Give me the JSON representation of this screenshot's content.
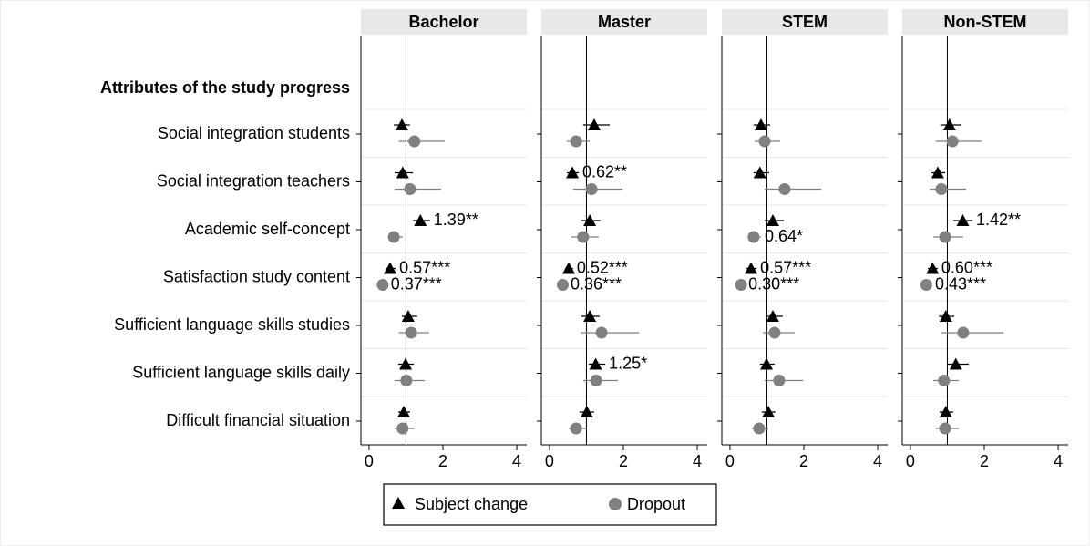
{
  "chart_data": [
    {
      "type": "forest",
      "title": "Bachelor",
      "category_header": "Attributes of the study progress",
      "categories": [
        "Social integration students",
        "Social integration teachers",
        "Academic self-concept",
        "Satisfaction study content",
        "Sufficient language skills studies",
        "Sufficient language skills daily",
        "Difficult financial situation"
      ],
      "reference": 1,
      "xlim": [
        -0.22,
        4.27
      ],
      "xticks": [
        0,
        2,
        4
      ],
      "series": [
        {
          "name": "Subject change",
          "color": "#000000",
          "values": [
            0.89,
            0.91,
            1.39,
            0.57,
            1.06,
            0.99,
            0.94
          ],
          "lower": [
            0.67,
            0.69,
            1.19,
            0.47,
            0.89,
            0.79,
            0.79
          ],
          "upper": [
            1.11,
            1.19,
            1.65,
            0.72,
            1.31,
            1.21,
            1.11
          ],
          "value_labels": [
            null,
            null,
            "1.39**",
            "0.57***",
            null,
            null,
            null
          ]
        },
        {
          "name": "Dropout",
          "color": "#808080",
          "values": [
            1.23,
            1.11,
            0.67,
            0.37,
            1.14,
            1.01,
            0.91
          ],
          "lower": [
            0.81,
            0.69,
            0.57,
            0.32,
            0.81,
            0.69,
            0.69
          ],
          "upper": [
            2.05,
            1.95,
            0.91,
            0.49,
            1.63,
            1.51,
            1.23
          ],
          "value_labels": [
            null,
            null,
            null,
            "0.37***",
            null,
            null,
            null
          ]
        }
      ]
    },
    {
      "type": "forest",
      "title": "Master",
      "reference": 1,
      "xlim": [
        -0.22,
        4.27
      ],
      "xticks": [
        0,
        2,
        4
      ],
      "series": [
        {
          "values": [
            1.21,
            0.62,
            1.09,
            0.52,
            1.09,
            1.25,
            1.01
          ],
          "lower": [
            0.91,
            0.47,
            0.86,
            0.42,
            0.86,
            1.06,
            0.81
          ],
          "upper": [
            1.63,
            0.79,
            1.38,
            0.64,
            1.36,
            1.51,
            1.21
          ],
          "value_labels": [
            null,
            "0.62**",
            null,
            "0.52***",
            null,
            "1.25*",
            null
          ]
        },
        {
          "values": [
            0.72,
            1.14,
            0.91,
            0.36,
            1.41,
            1.26,
            0.72
          ],
          "lower": [
            0.47,
            0.64,
            0.59,
            0.27,
            0.84,
            0.91,
            0.52
          ],
          "upper": [
            1.09,
            1.98,
            1.33,
            0.47,
            2.42,
            1.85,
            1.01
          ],
          "value_labels": [
            null,
            null,
            null,
            "0.36***",
            null,
            null,
            null
          ]
        }
      ]
    },
    {
      "type": "forest",
      "title": "STEM",
      "reference": 1,
      "xlim": [
        -0.22,
        4.27
      ],
      "xticks": [
        0,
        2,
        4
      ],
      "series": [
        {
          "values": [
            0.84,
            0.81,
            1.16,
            0.57,
            1.16,
            0.99,
            1.04
          ],
          "lower": [
            0.64,
            0.64,
            0.94,
            0.44,
            0.96,
            0.81,
            0.86
          ],
          "upper": [
            1.09,
            1.06,
            1.46,
            0.72,
            1.43,
            1.21,
            1.23
          ],
          "value_labels": [
            null,
            null,
            null,
            "0.57***",
            null,
            null,
            null
          ]
        },
        {
          "values": [
            0.94,
            1.48,
            0.64,
            0.3,
            1.21,
            1.33,
            0.79
          ],
          "lower": [
            0.67,
            0.94,
            0.49,
            0.25,
            0.89,
            0.94,
            0.59
          ],
          "upper": [
            1.36,
            2.47,
            0.84,
            0.4,
            1.75,
            1.98,
            1.04
          ],
          "value_labels": [
            null,
            null,
            "0.64*",
            "0.30***",
            null,
            null,
            null
          ]
        }
      ]
    },
    {
      "type": "forest",
      "title": "Non-STEM",
      "reference": 1,
      "xlim": [
        -0.22,
        4.27
      ],
      "xticks": [
        0,
        2,
        4
      ],
      "series": [
        {
          "values": [
            1.06,
            0.74,
            1.42,
            0.6,
            0.96,
            1.23,
            0.96
          ],
          "lower": [
            0.81,
            0.57,
            1.16,
            0.47,
            0.77,
            0.99,
            0.79
          ],
          "upper": [
            1.38,
            0.94,
            1.68,
            0.74,
            1.19,
            1.58,
            1.16
          ],
          "value_labels": [
            null,
            null,
            "1.42**",
            "0.60***",
            null,
            null,
            null
          ]
        },
        {
          "values": [
            1.14,
            0.84,
            0.94,
            0.43,
            1.43,
            0.91,
            0.94
          ],
          "lower": [
            0.69,
            0.52,
            0.62,
            0.35,
            0.84,
            0.62,
            0.69
          ],
          "upper": [
            1.93,
            1.51,
            1.43,
            0.57,
            2.52,
            1.31,
            1.31
          ],
          "value_labels": [
            null,
            null,
            null,
            "0.43***",
            null,
            null,
            null
          ]
        }
      ]
    }
  ]
}
